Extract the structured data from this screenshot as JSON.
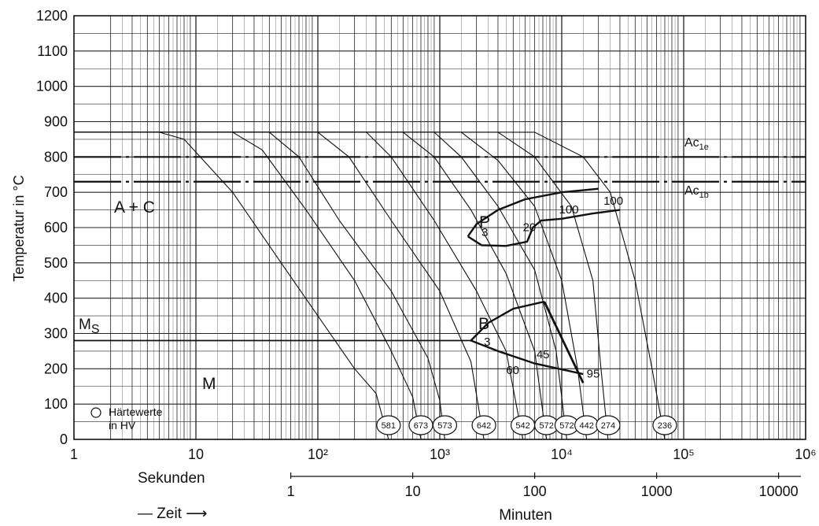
{
  "chart_data": {
    "type": "line",
    "ylabel": "Temperatur in °C",
    "ylim": [
      0,
      1200
    ],
    "xlim": [
      1,
      1000000
    ],
    "x_scale": "log",
    "grid": true,
    "y_ticks": [
      "0",
      "100",
      "200",
      "300",
      "400",
      "500",
      "600",
      "700",
      "800",
      "900",
      "1000",
      "1100",
      "1200"
    ],
    "x_ticks": [
      {
        "value": 1,
        "label": "1"
      },
      {
        "value": 10,
        "label": "10"
      },
      {
        "value": 100,
        "label": "10²"
      },
      {
        "value": 1000,
        "label": "10³"
      },
      {
        "value": 10000,
        "label": "10⁴"
      },
      {
        "value": 100000,
        "label": "10⁵"
      },
      {
        "value": 1000000,
        "label": "10⁶"
      }
    ],
    "x_axis_label": "Sekunden",
    "time_label": "— Zeit ⟶",
    "minutes_axis": {
      "label": "Minuten",
      "ticks": [
        {
          "minutes": 1,
          "label": "1"
        },
        {
          "minutes": 10,
          "label": "10"
        },
        {
          "minutes": 100,
          "label": "100"
        },
        {
          "minutes": 1000,
          "label": "1000"
        },
        {
          "minutes": 10000,
          "label": "10000"
        }
      ]
    },
    "reference_lines": [
      {
        "label_main": "Ac",
        "label_sub": "1e",
        "y": 800
      },
      {
        "label_main": "Ac",
        "label_sub": "1b",
        "y": 730
      }
    ],
    "ms": {
      "label_main": "M",
      "label_sub": "S",
      "y": 280
    },
    "phase_labels": [
      "A + C",
      "P",
      "B",
      "M"
    ],
    "legend": {
      "marker": "○",
      "line1": "Härtewerte",
      "line2": "in HV"
    },
    "pearlite_region": {
      "start": [
        [
          1700,
          575
        ],
        [
          2000,
          610
        ],
        [
          3000,
          650
        ],
        [
          5000,
          680
        ],
        [
          10000,
          700
        ],
        [
          20000,
          710
        ]
      ],
      "end": [
        [
          1700,
          575
        ],
        [
          2200,
          550
        ],
        [
          3500,
          548
        ],
        [
          5200,
          560
        ],
        [
          5800,
          600
        ],
        [
          6800,
          620
        ],
        [
          10000,
          625
        ],
        [
          18000,
          640
        ],
        [
          30000,
          650
        ]
      ],
      "percent_labels": [
        {
          "text": "3",
          "x": 2200,
          "y": 575
        },
        {
          "text": "20",
          "x": 4800,
          "y": 590
        },
        {
          "text": "100",
          "x": 9500,
          "y": 640
        },
        {
          "text": "100",
          "x": 22000,
          "y": 665
        }
      ]
    },
    "bainite_region": {
      "start": [
        [
          1800,
          280
        ],
        [
          2500,
          330
        ],
        [
          4000,
          370
        ],
        [
          7200,
          390
        ]
      ],
      "finish": [
        [
          7200,
          390
        ],
        [
          15000,
          160
        ]
      ],
      "lower": [
        [
          1800,
          280
        ],
        [
          3000,
          250
        ],
        [
          6000,
          215
        ],
        [
          15000,
          185
        ]
      ],
      "percent_labels": [
        {
          "text": "3",
          "x": 2300,
          "y": 265
        },
        {
          "text": "45",
          "x": 6200,
          "y": 230
        },
        {
          "text": "60",
          "x": 3500,
          "y": 185
        },
        {
          "text": "95",
          "x": 16000,
          "y": 175
        }
      ]
    },
    "cooling_curves": [
      {
        "hv": "581",
        "t_end": 380,
        "points": [
          [
            1,
            870
          ],
          [
            5,
            870
          ],
          [
            8,
            850
          ],
          [
            20,
            700
          ],
          [
            50,
            500
          ],
          [
            100,
            350
          ],
          [
            200,
            200
          ],
          [
            300,
            130
          ],
          [
            380,
            0
          ]
        ]
      },
      {
        "hv": "673",
        "t_end": 700,
        "points": [
          [
            1,
            870
          ],
          [
            20,
            870
          ],
          [
            35,
            820
          ],
          [
            80,
            650
          ],
          [
            200,
            450
          ],
          [
            400,
            250
          ],
          [
            600,
            120
          ],
          [
            700,
            0
          ]
        ]
      },
      {
        "hv": "573",
        "t_end": 1100,
        "points": [
          [
            1,
            870
          ],
          [
            40,
            870
          ],
          [
            70,
            800
          ],
          [
            150,
            620
          ],
          [
            400,
            420
          ],
          [
            800,
            230
          ],
          [
            1000,
            110
          ],
          [
            1100,
            0
          ]
        ]
      },
      {
        "hv": "642",
        "t_end": 2300,
        "points": [
          [
            1,
            870
          ],
          [
            100,
            870
          ],
          [
            180,
            800
          ],
          [
            400,
            620
          ],
          [
            1000,
            420
          ],
          [
            1800,
            220
          ],
          [
            2300,
            0
          ]
        ]
      },
      {
        "hv": "542",
        "t_end": 4800,
        "points": [
          [
            1,
            870
          ],
          [
            250,
            870
          ],
          [
            400,
            800
          ],
          [
            900,
            620
          ],
          [
            2000,
            420
          ],
          [
            3500,
            250
          ],
          [
            4800,
            0
          ]
        ]
      },
      {
        "hv": "572",
        "t_end": 7500,
        "points": [
          [
            1,
            870
          ],
          [
            500,
            870
          ],
          [
            900,
            800
          ],
          [
            1800,
            650
          ],
          [
            3500,
            470
          ],
          [
            6000,
            250
          ],
          [
            7500,
            0
          ]
        ]
      },
      {
        "hv": "572",
        "t_end": 11000,
        "points": [
          [
            1,
            870
          ],
          [
            900,
            870
          ],
          [
            1500,
            800
          ],
          [
            3000,
            660
          ],
          [
            6000,
            480
          ],
          [
            9000,
            250
          ],
          [
            11000,
            0
          ]
        ]
      },
      {
        "hv": "442",
        "t_end": 16000,
        "points": [
          [
            1,
            870
          ],
          [
            1500,
            870
          ],
          [
            3000,
            790
          ],
          [
            6000,
            660
          ],
          [
            10000,
            450
          ],
          [
            13500,
            200
          ],
          [
            16000,
            0
          ]
        ]
      },
      {
        "hv": "274",
        "t_end": 24000,
        "points": [
          [
            1,
            870
          ],
          [
            3000,
            870
          ],
          [
            6000,
            800
          ],
          [
            12000,
            660
          ],
          [
            18000,
            450
          ],
          [
            21000,
            200
          ],
          [
            24000,
            0
          ]
        ]
      },
      {
        "hv": "236",
        "t_end": 70000,
        "points": [
          [
            1,
            870
          ],
          [
            6000,
            870
          ],
          [
            15000,
            800
          ],
          [
            25000,
            700
          ],
          [
            40000,
            450
          ],
          [
            55000,
            200
          ],
          [
            70000,
            0
          ]
        ]
      }
    ]
  }
}
